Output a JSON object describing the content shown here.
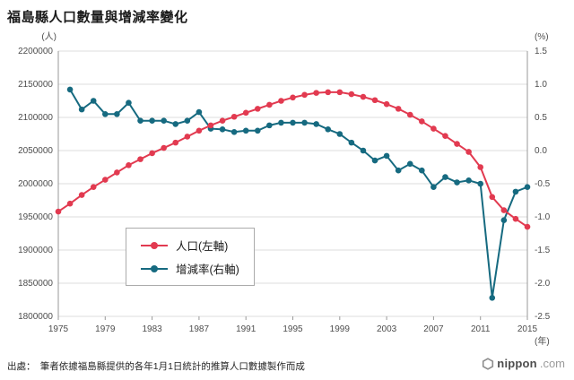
{
  "header": {
    "title": "福島縣人口數量與增減率變化"
  },
  "footer": {
    "source": "出處：　筆者依據福島縣提供的各年1月1日統計的推算人口數據製作而成",
    "logo_name": "nippon",
    "logo_tld": ".com"
  },
  "chart_data": {
    "type": "line",
    "title": "福島縣人口數量與增減率變化",
    "grid": true,
    "legend_position": "inside-bottom-left",
    "x": [
      1975,
      1976,
      1977,
      1978,
      1979,
      1980,
      1981,
      1982,
      1983,
      1984,
      1985,
      1986,
      1987,
      1988,
      1989,
      1990,
      1991,
      1992,
      1993,
      1994,
      1995,
      1996,
      1997,
      1998,
      1999,
      2000,
      2001,
      2002,
      2003,
      2004,
      2005,
      2006,
      2007,
      2008,
      2009,
      2010,
      2011,
      2012,
      2013,
      2014,
      2015
    ],
    "x_tick_labels": [
      "1975",
      "1979",
      "1983",
      "1987",
      "1991",
      "1995",
      "1999",
      "2003",
      "2007",
      "2011",
      "2015"
    ],
    "x_unit": "(年)",
    "left_axis": {
      "unit": "(人)",
      "min": 1800000,
      "max": 2200000,
      "tick_step": 50000,
      "ticks": [
        "2200000",
        "2150000",
        "2100000",
        "2050000",
        "2000000",
        "1950000",
        "1900000",
        "1850000",
        "1800000"
      ]
    },
    "right_axis": {
      "unit": "(%)",
      "min": -2.5,
      "max": 1.5,
      "tick_step": 0.5,
      "ticks": [
        "1.5",
        "1.0",
        "0.5",
        "0.0",
        "-0.5",
        "-1.0",
        "-1.5",
        "-2.0",
        "-2.5"
      ]
    },
    "series": [
      {
        "name": "人口(左軸)",
        "axis": "left",
        "color": "#e23a50",
        "values": [
          1958000,
          1970000,
          1983000,
          1995000,
          2006000,
          2017000,
          2028000,
          2037000,
          2046000,
          2054000,
          2062000,
          2071000,
          2080000,
          2088000,
          2095000,
          2101000,
          2107000,
          2113000,
          2119000,
          2125000,
          2130000,
          2134000,
          2137000,
          2138000,
          2138000,
          2135000,
          2131000,
          2126000,
          2120000,
          2113000,
          2104000,
          2094000,
          2083000,
          2072000,
          2060000,
          2048000,
          2025000,
          1980000,
          1960000,
          1947000,
          1935000
        ]
      },
      {
        "name": "增減率(右軸)",
        "axis": "right",
        "color": "#166a80",
        "values": [
          null,
          0.92,
          0.62,
          0.75,
          0.55,
          0.55,
          0.72,
          0.45,
          0.45,
          0.45,
          0.4,
          0.45,
          0.58,
          0.33,
          0.32,
          0.28,
          0.3,
          0.3,
          0.38,
          0.42,
          0.42,
          0.42,
          0.4,
          0.32,
          0.25,
          0.12,
          0.0,
          -0.15,
          -0.08,
          -0.3,
          -0.2,
          -0.3,
          -0.55,
          -0.4,
          -0.48,
          -0.45,
          -0.5,
          -2.22,
          -1.05,
          -0.62,
          -0.55
        ]
      }
    ]
  }
}
